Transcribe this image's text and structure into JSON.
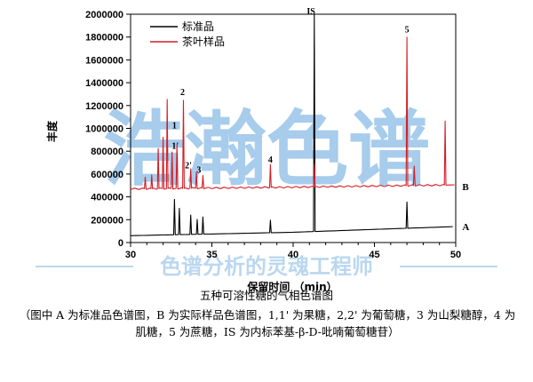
{
  "watermark": {
    "brand": "浩瀚色谱",
    "slogan": "色谱分析的灵魂工程师",
    "color": "#3d8fd6"
  },
  "caption": {
    "title": "五种可溶性糖的气相色谱图",
    "note": "（图中 A 为标准品色谱图，B 为实际样品色谱图，1,1' 为果糖，2,2' 为葡萄糖，3 为山梨糖醇，4 为肌糖，5 为蔗糖，IS 为内标苯基-β-D-吡喃葡萄糖苷）"
  },
  "chart_data": {
    "type": "line",
    "xlabel": "保留时间 （min）",
    "ylabel": "丰度",
    "xlim": [
      30,
      50
    ],
    "ylim": [
      0,
      2000000
    ],
    "xticks": [
      30,
      35,
      40,
      45,
      50
    ],
    "xtick_labels": [
      "30",
      "35",
      "40",
      "45",
      "50"
    ],
    "yticks": [
      0,
      200000,
      400000,
      600000,
      800000,
      1000000,
      1200000,
      1400000,
      1600000,
      1800000,
      2000000
    ],
    "ytick_labels": [
      "0",
      "200000",
      "400000",
      "600000",
      "800000",
      "1000000",
      "1200000",
      "1400000",
      "1600000",
      "1800000",
      "2000000"
    ],
    "legend": {
      "placement": "top-left"
    },
    "series": [
      {
        "name": "标准品",
        "trace_label": "A",
        "color": "#000000",
        "baseline": [
          [
            30,
            60000
          ],
          [
            40,
            90000
          ],
          [
            50,
            140000
          ]
        ],
        "peaks": [
          {
            "x": 32.7,
            "height": 310000
          },
          {
            "x": 33.0,
            "height": 230000
          },
          {
            "x": 33.7,
            "height": 170000
          },
          {
            "x": 34.1,
            "height": 130000
          },
          {
            "x": 34.45,
            "height": 150000
          },
          {
            "x": 38.6,
            "height": 110000
          },
          {
            "x": 41.3,
            "height": 1900000
          },
          {
            "x": 47.0,
            "height": 230000
          }
        ]
      },
      {
        "name": "茶叶样品",
        "trace_label": "B",
        "color": "#d21e26",
        "baseline": [
          [
            30,
            470000
          ],
          [
            40,
            485000
          ],
          [
            50,
            505000
          ]
        ],
        "peaks": [
          {
            "x": 30.9,
            "height": 100000
          },
          {
            "x": 31.3,
            "height": 120000
          },
          {
            "x": 31.7,
            "height": 350000
          },
          {
            "x": 32.0,
            "height": 450000
          },
          {
            "x": 32.25,
            "height": 780000
          },
          {
            "x": 32.55,
            "height": 320000
          },
          {
            "x": 32.85,
            "height": 380000
          },
          {
            "x": 33.25,
            "height": 770000
          },
          {
            "x": 33.7,
            "height": 170000
          },
          {
            "x": 34.05,
            "height": 140000
          },
          {
            "x": 34.45,
            "height": 110000
          },
          {
            "x": 38.6,
            "height": 200000
          },
          {
            "x": 41.3,
            "height": 200000
          },
          {
            "x": 47.0,
            "height": 1300000
          },
          {
            "x": 47.45,
            "height": 170000
          },
          {
            "x": 49.35,
            "height": 560000
          }
        ]
      }
    ],
    "peak_labels": [
      {
        "text": "1",
        "x": 32.7,
        "y": 1000000
      },
      {
        "text": "1'",
        "x": 32.75,
        "y": 820000
      },
      {
        "text": "2",
        "x": 33.2,
        "y": 1290000
      },
      {
        "text": "2'",
        "x": 33.55,
        "y": 650000
      },
      {
        "text": "3",
        "x": 34.2,
        "y": 610000
      },
      {
        "text": "4",
        "x": 38.6,
        "y": 700000
      },
      {
        "text": "IS",
        "x": 41.1,
        "y": 2000000
      },
      {
        "text": "5",
        "x": 47.0,
        "y": 1840000
      }
    ],
    "trace_label_positions": [
      {
        "text": "B",
        "x": 50.4,
        "y": 490000
      },
      {
        "text": "A",
        "x": 50.4,
        "y": 140000
      }
    ]
  }
}
